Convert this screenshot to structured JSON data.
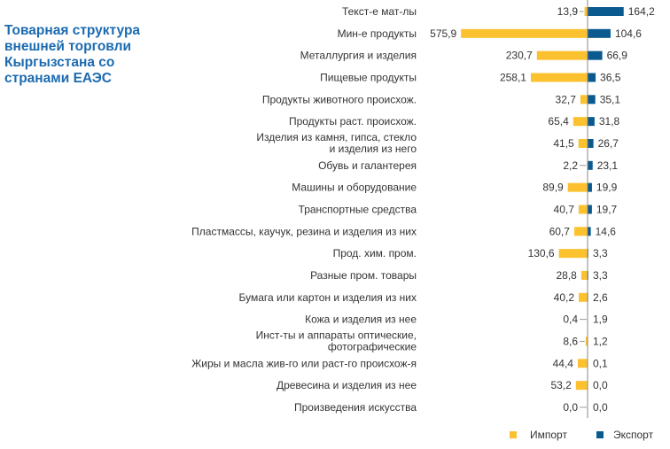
{
  "chart_data": {
    "type": "bar",
    "orientation": "horizontal-diverging",
    "title": "Товарная структура внешней торговли Кыргызстана со странами ЕАЭС",
    "categories": [
      [
        "Текст-е мат-лы"
      ],
      [
        "Мин-е продукты"
      ],
      [
        "Металлургия и изделия"
      ],
      [
        "Пищевые продукты"
      ],
      [
        "Продукты животного происхож."
      ],
      [
        "Продукты раст. происхож."
      ],
      [
        "Изделия из камня, гипса, стекло",
        "и изделия из него"
      ],
      [
        "Обувь и галантерея"
      ],
      [
        "Машины и оборудование"
      ],
      [
        "Транспортные средства"
      ],
      [
        "Пластмассы, каучук, резина и изделия из них"
      ],
      [
        "Прод. хим. пром."
      ],
      [
        "Разные пром. товары"
      ],
      [
        "Бумага или картон и изделия из них"
      ],
      [
        "Кожа и изделия из нее"
      ],
      [
        "Инст-ты и аппараты оптические,",
        "фотографические"
      ],
      [
        "Жиры и масла жив-го или раст-го происхож-я"
      ],
      [
        "Древесина и изделия из нее"
      ],
      [
        "Произведения искусства"
      ]
    ],
    "series": [
      {
        "name": "Импорт",
        "color": "#fcc12e",
        "values": [
          13.9,
          575.9,
          230.7,
          258.1,
          32.7,
          65.4,
          41.5,
          2.2,
          89.9,
          40.7,
          60.7,
          130.6,
          28.8,
          40.2,
          0.4,
          8.6,
          44.4,
          53.2,
          0.0
        ],
        "labels": [
          "13,9",
          "575,9",
          "230,7",
          "258,1",
          "32,7",
          "65,4",
          "41,5",
          "2,2",
          "89,9",
          "40,7",
          "60,7",
          "130,6",
          "28,8",
          "40,2",
          "0,4",
          "8,6",
          "44,4",
          "53,2",
          "0,0"
        ]
      },
      {
        "name": "Экспорт",
        "color": "#0b5a8f",
        "values": [
          164.2,
          104.6,
          66.9,
          36.5,
          35.1,
          31.8,
          26.7,
          23.1,
          19.9,
          19.7,
          14.6,
          3.3,
          3.3,
          2.6,
          1.9,
          1.2,
          0.1,
          0.0,
          0.0
        ],
        "labels": [
          "164,2",
          "104,6",
          "66,9",
          "36,5",
          "35,1",
          "31,8",
          "26,7",
          "23,1",
          "19,9",
          "19,7",
          "14,6",
          "3,3",
          "3,3",
          "2,6",
          "1,9",
          "1,2",
          "0,1",
          "0,0",
          "0,0"
        ]
      }
    ],
    "legend": "bottom-right",
    "grid": false
  }
}
